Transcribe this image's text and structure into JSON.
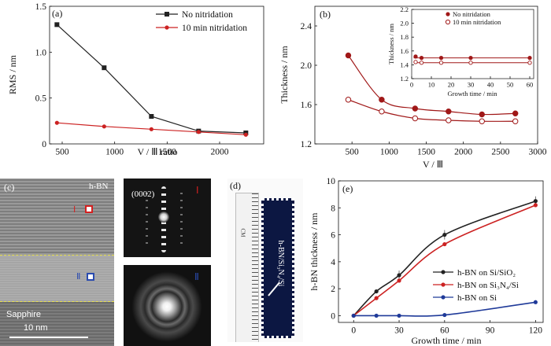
{
  "panel_a": {
    "label": "(a)",
    "ylabel": "RMS / nm",
    "xlabel": "V / Ⅲ ratio",
    "yticks": [
      "0",
      "0.5",
      "1.0",
      "1.5"
    ],
    "xticks": [
      "500",
      "1000",
      "1500",
      "2000"
    ]
  },
  "panel_b": {
    "label": "(b)",
    "ylabel": "Thickness / nm",
    "xlabel": "V / Ⅲ",
    "yticks": [
      "1.2",
      "1.6",
      "2.0",
      "2.4"
    ],
    "xticks": [
      "500",
      "1000",
      "1500",
      "2000",
      "2500",
      "3000"
    ],
    "inset": {
      "ylabel": "Thickness / nm",
      "xlabel": "Growth time / min",
      "yticks": [
        "1.2",
        "1.4",
        "1.6",
        "1.8",
        "2.0",
        "2.2"
      ],
      "xticks": [
        "0",
        "10",
        "20",
        "30",
        "40",
        "50",
        "60"
      ]
    }
  },
  "panel_c": {
    "label": "(c)",
    "hbn_label": "h-BN",
    "roman_1": "Ⅰ",
    "roman_2": "Ⅱ",
    "substrate_label": "Sapphire",
    "scale_label": "10 nm",
    "diffraction_label": "(0002)",
    "inset_1_label": "Ⅰ",
    "inset_2_label": "Ⅱ"
  },
  "panel_d": {
    "label": "(d)",
    "sample_text": "h-BN/Si₃N₄/Si",
    "ruler_unit": "CM"
  },
  "panel_e": {
    "label": "(e)",
    "ylabel": "h-BN thickness / nm",
    "xlabel": "Growth time / min",
    "yticks": [
      "0",
      "2",
      "4",
      "6",
      "8",
      "10"
    ],
    "xticks": [
      "0",
      "30",
      "60",
      "90",
      "120"
    ]
  },
  "colors": {
    "black_series": "#222222",
    "red_series": "#cc2222",
    "blue_series": "#1f3a99"
  },
  "chart_data": [
    {
      "type": "line",
      "xlabel": "V / Ⅲ ratio",
      "ylabel": "RMS / nm",
      "xlim": [
        380,
        2420
      ],
      "ylim": [
        0,
        1.5
      ],
      "series": [
        {
          "name": "No nitridation",
          "x": [
            450,
            900,
            1350,
            1800,
            2250
          ],
          "y": [
            1.3,
            0.83,
            0.3,
            0.14,
            0.12
          ]
        },
        {
          "name": "10 min nitridation",
          "x": [
            450,
            900,
            1350,
            1800,
            2250
          ],
          "y": [
            0.23,
            0.19,
            0.16,
            0.13,
            0.1
          ]
        }
      ],
      "legend": "top-right"
    },
    {
      "type": "scatter",
      "xlabel": "V / Ⅲ",
      "ylabel": "Thickness / nm",
      "xlim": [
        0,
        3000
      ],
      "ylim": [
        1.2,
        2.6
      ],
      "series": [
        {
          "name": "No nitridation",
          "x": [
            450,
            900,
            1350,
            1800,
            2250,
            2700
          ],
          "y": [
            2.1,
            1.65,
            1.56,
            1.53,
            1.5,
            1.51
          ]
        },
        {
          "name": "10 min nitridation",
          "x": [
            450,
            900,
            1350,
            1800,
            2250,
            2700
          ],
          "y": [
            1.65,
            1.53,
            1.46,
            1.44,
            1.43,
            1.43
          ]
        }
      ],
      "inset": {
        "xlabel": "Growth time / min",
        "ylabel": "Thickness / nm",
        "xlim": [
          0,
          62
        ],
        "ylim": [
          1.2,
          2.2
        ],
        "series": [
          {
            "name": "No nitridation",
            "x": [
              2,
              5,
              15,
              30,
              60
            ],
            "y": [
              1.52,
              1.5,
              1.5,
              1.5,
              1.5
            ]
          },
          {
            "name": "10 min nitridation",
            "x": [
              2,
              5,
              15,
              30,
              60
            ],
            "y": [
              1.44,
              1.43,
              1.43,
              1.43,
              1.43
            ]
          }
        ],
        "legend": "top"
      }
    },
    {
      "type": "line",
      "xlabel": "Growth time / min",
      "ylabel": "h-BN thickness / nm",
      "xlim": [
        -10,
        125
      ],
      "ylim": [
        -0.5,
        10
      ],
      "series": [
        {
          "name": "h-BN on Si/SiO₂",
          "x": [
            0,
            15,
            30,
            60,
            120
          ],
          "y": [
            0,
            1.8,
            3.0,
            6.0,
            8.5
          ]
        },
        {
          "name": "h-BN on Si₃N₄/Si",
          "x": [
            0,
            15,
            30,
            60,
            120
          ],
          "y": [
            0,
            1.3,
            2.6,
            5.3,
            8.2
          ]
        },
        {
          "name": "h-BN on Si",
          "x": [
            0,
            15,
            30,
            60,
            120
          ],
          "y": [
            0,
            0,
            0,
            0.05,
            1.0
          ]
        }
      ],
      "legend": "bottom-right"
    }
  ]
}
